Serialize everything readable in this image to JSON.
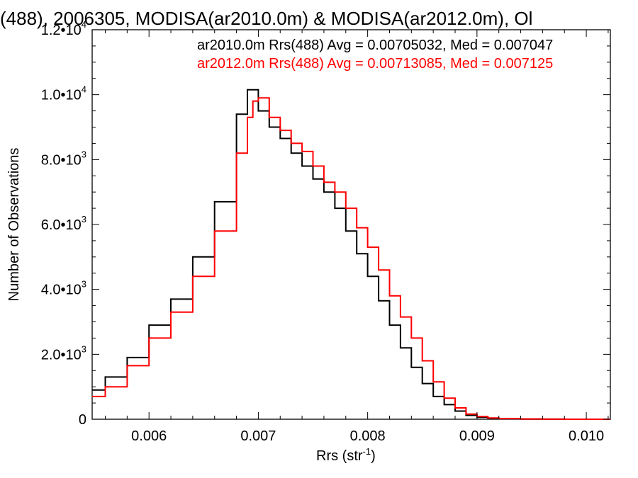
{
  "chart_data": {
    "type": "line",
    "title": "(488), 2006305, MODISA(ar2010.0m) & MODISA(ar2012.0m), Ol",
    "xlabel": "Rrs (str",
    "xlabel_exponent": "-1",
    "xlabel_close": ")",
    "ylabel": "Number of Observations",
    "xlim": [
      0.00548,
      0.01022
    ],
    "ylim": [
      0,
      12000
    ],
    "grid": false,
    "legend_position": "top-right",
    "x_ticks": [
      {
        "value": 0.006,
        "label": "0.006"
      },
      {
        "value": 0.007,
        "label": "0.007"
      },
      {
        "value": 0.008,
        "label": "0.008"
      },
      {
        "value": 0.009,
        "label": "0.009"
      },
      {
        "value": 0.01,
        "label": "0.010"
      }
    ],
    "y_ticks": [
      {
        "value": 0,
        "mant": "0",
        "exp": ""
      },
      {
        "value": 2000,
        "mant": "2.0•10",
        "exp": "3"
      },
      {
        "value": 4000,
        "mant": "4.0•10",
        "exp": "3"
      },
      {
        "value": 6000,
        "mant": "6.0•10",
        "exp": "3"
      },
      {
        "value": 8000,
        "mant": "8.0•10",
        "exp": "3"
      },
      {
        "value": 10000,
        "mant": "1.0•10",
        "exp": "4"
      },
      {
        "value": 12000,
        "mant": "1.2•10",
        "exp": "4"
      }
    ],
    "series": [
      {
        "name": "ar2010.0m Rrs(488) Avg = 0.00705032, Med = 0.007047",
        "color": "#000000",
        "x": [
          0.00548,
          0.0056,
          0.0058,
          0.006,
          0.0062,
          0.0064,
          0.0066,
          0.0068,
          0.0069,
          0.00695,
          0.007,
          0.0071,
          0.0072,
          0.0073,
          0.0074,
          0.0075,
          0.0076,
          0.0077,
          0.0078,
          0.0079,
          0.008,
          0.0081,
          0.0082,
          0.0083,
          0.0084,
          0.0085,
          0.0086,
          0.0087,
          0.0088,
          0.0089,
          0.009,
          0.0091,
          0.0092,
          0.0094,
          0.0096,
          0.0098,
          0.01,
          0.01022
        ],
        "y": [
          900,
          1300,
          1900,
          2900,
          3700,
          5000,
          6700,
          9400,
          10150,
          10150,
          9500,
          9000,
          8650,
          8200,
          7800,
          7400,
          7000,
          6500,
          5800,
          5100,
          4400,
          3650,
          2900,
          2200,
          1600,
          1100,
          700,
          450,
          250,
          120,
          60,
          30,
          15,
          5,
          2,
          1,
          0,
          0
        ]
      },
      {
        "name": "ar2012.0m Rrs(488) Avg = 0.00713085, Med = 0.007125",
        "color": "#ff0000",
        "x": [
          0.00548,
          0.0056,
          0.0058,
          0.006,
          0.0062,
          0.0064,
          0.0066,
          0.0068,
          0.0069,
          0.00695,
          0.007,
          0.0071,
          0.0072,
          0.0073,
          0.0074,
          0.0075,
          0.0076,
          0.0077,
          0.0078,
          0.0079,
          0.008,
          0.0081,
          0.0082,
          0.0083,
          0.0084,
          0.0085,
          0.0086,
          0.0087,
          0.0088,
          0.0089,
          0.009,
          0.0091,
          0.0092,
          0.0094,
          0.0096,
          0.0098,
          0.01,
          0.01022
        ],
        "y": [
          700,
          1000,
          1650,
          2500,
          3300,
          4400,
          5800,
          8200,
          9300,
          9800,
          9900,
          9300,
          8900,
          8500,
          8250,
          7800,
          7300,
          7000,
          6500,
          5900,
          5300,
          4600,
          3800,
          3150,
          2500,
          1800,
          1150,
          650,
          350,
          160,
          80,
          40,
          20,
          8,
          3,
          1,
          0,
          0
        ]
      }
    ]
  }
}
